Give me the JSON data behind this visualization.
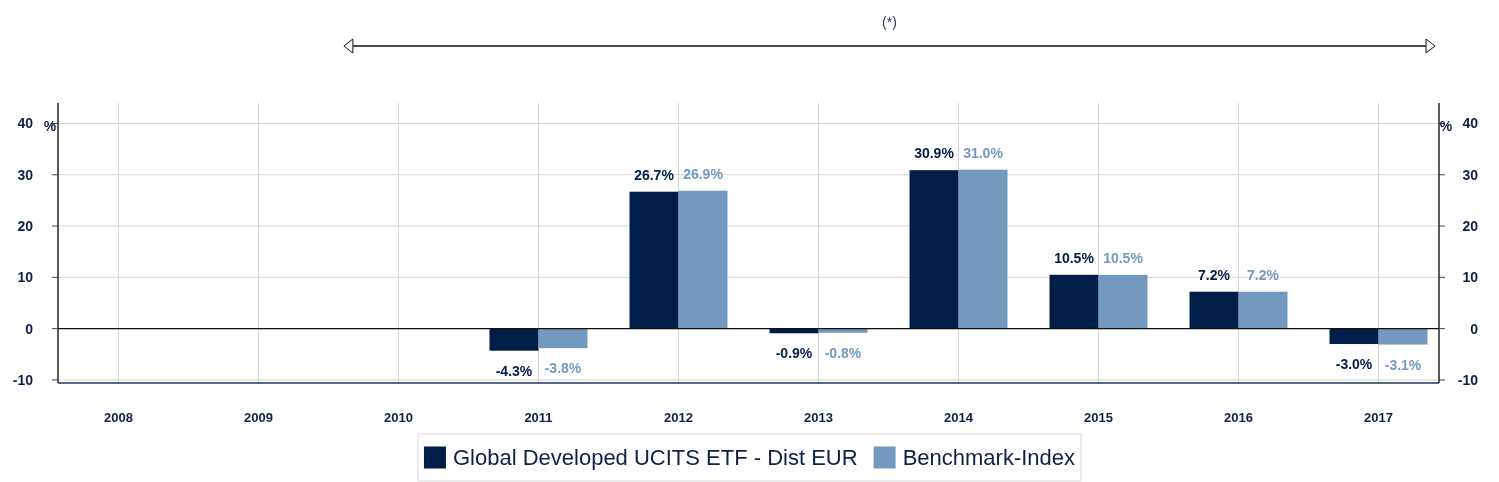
{
  "chart_data": {
    "type": "bar",
    "annotations": [
      "(*)"
    ],
    "ylabel": "%",
    "y2label": "%",
    "categories": [
      "2008",
      "2009",
      "2010",
      "2011",
      "2012",
      "2013",
      "2014",
      "2015",
      "2016",
      "2017"
    ],
    "series": [
      {
        "name": "Global Developed UCITS ETF - Dist EUR",
        "color": "#011e49",
        "values": [
          null,
          null,
          null,
          -4.3,
          26.7,
          -0.9,
          30.9,
          10.5,
          7.2,
          -3.0
        ],
        "value_labels": [
          null,
          null,
          null,
          "-4.3%",
          "26.7%",
          "-0.9%",
          "30.9%",
          "10.5%",
          "7.2%",
          "-3.0%"
        ]
      },
      {
        "name": "Benchmark-Index",
        "color": "#7399bf",
        "values": [
          null,
          null,
          null,
          -3.8,
          26.9,
          -0.8,
          31.0,
          10.5,
          7.2,
          -3.1
        ],
        "value_labels": [
          null,
          null,
          null,
          "-3.8%",
          "26.9%",
          "-0.8%",
          "31.0%",
          "10.5%",
          "7.2%",
          "-3.1%"
        ]
      }
    ],
    "ylim": [
      -10.6,
      44
    ],
    "yticks": [
      -10,
      0,
      10,
      20,
      30,
      40
    ],
    "y2lim": [
      -10.6,
      44
    ],
    "y2ticks": [
      -10,
      0,
      10,
      20,
      30,
      40
    ],
    "grid": true,
    "legend": "bottom"
  }
}
